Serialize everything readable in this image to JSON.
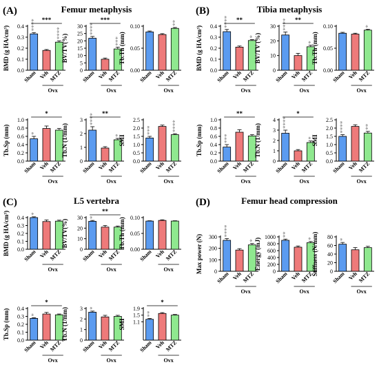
{
  "colors": {
    "sham": "#5b9bf0",
    "veh": "#ee7a7a",
    "mtz": "#8fe88f",
    "bar_stroke": "#000000",
    "star": "#7a7a7a"
  },
  "panels": [
    {
      "letter": "(A)",
      "title": "Femur metaphysis"
    },
    {
      "letter": "(B)",
      "title": "Tibia metaphysis"
    },
    {
      "letter": "(C)",
      "title": "L5 vertebra"
    },
    {
      "letter": "(D)",
      "title": "Femur head compression"
    }
  ],
  "chart_data": [
    {
      "type": "bar",
      "panel": "A",
      "ylabel": "BMD (g HA/cm³)",
      "ylim": [
        0,
        0.4
      ],
      "yticks": [
        "0.0",
        "0.1",
        "0.2",
        "0.3",
        "0.4"
      ],
      "categories": [
        "Sham",
        "Veh",
        "MTZ"
      ],
      "group_label": "Ovx",
      "values": [
        0.33,
        0.18,
        0.255
      ],
      "errors": [
        0.012,
        0.008,
        0.012
      ],
      "bar_stars": [
        "****",
        "",
        "****"
      ],
      "brackets": [
        {
          "from": 0,
          "to": 2,
          "stars": "***"
        }
      ]
    },
    {
      "type": "bar",
      "panel": "A",
      "ylabel": "BV/TV(%)",
      "ylim": [
        0,
        30
      ],
      "yticks": [
        "0",
        "5",
        "10",
        "15",
        "20",
        "25",
        "30"
      ],
      "categories": [
        "Sham",
        "Veh",
        "MTZ"
      ],
      "group_label": "Ovx",
      "values": [
        21.8,
        7.5,
        14.5
      ],
      "errors": [
        1.2,
        0.8,
        1.2
      ],
      "bar_stars": [
        "****",
        "",
        "***"
      ],
      "brackets": [
        {
          "from": 0,
          "to": 2,
          "stars": "***"
        }
      ]
    },
    {
      "type": "bar",
      "panel": "A",
      "ylabel": "Tb.Th (mm)",
      "ylim": [
        0,
        0.1
      ],
      "yticks": [
        "0.00",
        "0.05",
        "0.10"
      ],
      "categories": [
        "Sham",
        "Veh",
        "MTZ"
      ],
      "group_label": "Ovx",
      "values": [
        0.087,
        0.081,
        0.095
      ],
      "errors": [
        0.002,
        0.002,
        0.002
      ],
      "bar_stars": [
        "",
        "",
        "**"
      ],
      "brackets": []
    },
    {
      "type": "bar",
      "panel": "A",
      "ylabel": "Tb.Sp (mm)",
      "ylim": [
        0,
        1.0
      ],
      "yticks": [
        "0.0",
        "0.2",
        "0.4",
        "0.6",
        "0.8",
        "1.0"
      ],
      "categories": [
        "Sham",
        "Veh",
        "MTZ"
      ],
      "group_label": "Ovx",
      "values": [
        0.54,
        0.79,
        0.75
      ],
      "errors": [
        0.06,
        0.06,
        0.04
      ],
      "bar_stars": [
        "*",
        "",
        ""
      ],
      "brackets": [
        {
          "from": 0,
          "to": 2,
          "stars": "*"
        }
      ]
    },
    {
      "type": "bar",
      "panel": "A",
      "ylabel": "Tb.N (1/mm)",
      "ylim": [
        0,
        3
      ],
      "yticks": [
        "0",
        "1",
        "2",
        "3"
      ],
      "categories": [
        "Sham",
        "Veh",
        "MTZ"
      ],
      "group_label": "Ovx",
      "values": [
        2.25,
        0.95,
        1.55
      ],
      "errors": [
        0.25,
        0.1,
        0.1
      ],
      "bar_stars": [
        "****",
        "",
        "*"
      ],
      "brackets": [
        {
          "from": 0,
          "to": 2,
          "stars": "**"
        }
      ]
    },
    {
      "type": "bar",
      "panel": "A",
      "ylabel": "SMI",
      "ylim": [
        0,
        2.5
      ],
      "yticks": [
        "0.0",
        "0.5",
        "1.0",
        "1.5",
        "2.0",
        "2.5"
      ],
      "categories": [
        "Sham",
        "Veh",
        "MTZ"
      ],
      "group_label": "Ovx",
      "values": [
        1.4,
        2.1,
        1.6
      ],
      "errors": [
        0.1,
        0.08,
        0.06
      ],
      "bar_stars": [
        "***",
        "",
        "****"
      ],
      "brackets": []
    },
    {
      "type": "bar",
      "panel": "B",
      "ylabel": "BMD (g HA/cm³)",
      "ylim": [
        0,
        0.4
      ],
      "yticks": [
        "0.0",
        "0.1",
        "0.2",
        "0.3",
        "0.4"
      ],
      "categories": [
        "Sham",
        "Veh",
        "MTZ"
      ],
      "group_label": "Ovx",
      "values": [
        0.35,
        0.21,
        0.27
      ],
      "errors": [
        0.02,
        0.01,
        0.008
      ],
      "bar_stars": [
        "****",
        "",
        "*"
      ],
      "brackets": [
        {
          "from": 0,
          "to": 2,
          "stars": "**"
        }
      ]
    },
    {
      "type": "bar",
      "panel": "B",
      "ylabel": "BV/TV (%)",
      "ylim": [
        0,
        30
      ],
      "yticks": [
        "0",
        "10",
        "20",
        "30"
      ],
      "categories": [
        "Sham",
        "Veh",
        "MTZ"
      ],
      "group_label": "Ovx",
      "values": [
        24,
        10,
        16
      ],
      "errors": [
        2,
        1.5,
        1
      ],
      "bar_stars": [
        "****",
        "",
        "*"
      ],
      "brackets": [
        {
          "from": 0,
          "to": 2,
          "stars": "**"
        }
      ]
    },
    {
      "type": "bar",
      "panel": "B",
      "ylabel": "Tb.Th (mm)",
      "ylim": [
        0,
        0.1
      ],
      "yticks": [
        "0.00",
        "0.05",
        "0.10"
      ],
      "categories": [
        "Sham",
        "Veh",
        "MTZ"
      ],
      "group_label": "Ovx",
      "values": [
        0.084,
        0.082,
        0.091
      ],
      "errors": [
        0.002,
        0.002,
        0.002
      ],
      "bar_stars": [
        "",
        "",
        "*"
      ],
      "brackets": []
    },
    {
      "type": "bar",
      "panel": "B",
      "ylabel": "Tb.Sp (mm)",
      "ylim": [
        0,
        1.0
      ],
      "yticks": [
        "0.0",
        "0.2",
        "0.4",
        "0.6",
        "0.8",
        "1.0"
      ],
      "categories": [
        "Sham",
        "Veh",
        "MTZ"
      ],
      "group_label": "Ovx",
      "values": [
        0.34,
        0.7,
        0.61
      ],
      "errors": [
        0.06,
        0.06,
        0.03
      ],
      "bar_stars": [
        "***",
        "",
        ""
      ],
      "brackets": [
        {
          "from": 0,
          "to": 2,
          "stars": "**"
        }
      ]
    },
    {
      "type": "bar",
      "panel": "B",
      "ylabel": "Tb.N (1/mm)",
      "ylim": [
        0,
        4
      ],
      "yticks": [
        "0",
        "1",
        "2",
        "3",
        "4"
      ],
      "categories": [
        "Sham",
        "Veh",
        "MTZ"
      ],
      "group_label": "Ovx",
      "values": [
        2.7,
        1.0,
        1.8
      ],
      "errors": [
        0.3,
        0.12,
        0.15
      ],
      "bar_stars": [
        "****",
        "",
        "*"
      ],
      "brackets": [
        {
          "from": 0,
          "to": 2,
          "stars": "*"
        }
      ]
    },
    {
      "type": "bar",
      "panel": "B",
      "ylabel": "SMI",
      "ylim": [
        0,
        2.5
      ],
      "yticks": [
        "0.0",
        "0.5",
        "1.0",
        "1.5",
        "2.0",
        "2.5"
      ],
      "categories": [
        "Sham",
        "Veh",
        "MTZ"
      ],
      "group_label": "Ovx",
      "values": [
        1.5,
        2.1,
        1.7
      ],
      "errors": [
        0.1,
        0.1,
        0.1
      ],
      "bar_stars": [
        "****",
        "",
        "**"
      ],
      "brackets": []
    },
    {
      "type": "bar",
      "panel": "C",
      "ylabel": "BMD (g HA/cm³)",
      "ylim": [
        0,
        0.4
      ],
      "yticks": [
        "0.0",
        "0.1",
        "0.2",
        "0.3",
        "0.4"
      ],
      "categories": [
        "Sham",
        "Veh",
        "MTZ"
      ],
      "group_label": "Ovx",
      "values": [
        0.4,
        0.35,
        0.355
      ],
      "errors": [
        0.01,
        0.02,
        0.012
      ],
      "bar_stars": [
        "*",
        "",
        ""
      ],
      "brackets": []
    },
    {
      "type": "bar",
      "panel": "C",
      "ylabel": "BV/TV(%)",
      "ylim": [
        0,
        30
      ],
      "yticks": [
        "0",
        "10",
        "20",
        "30"
      ],
      "categories": [
        "Sham",
        "Veh",
        "MTZ"
      ],
      "group_label": "Ovx",
      "values": [
        26.5,
        21,
        21
      ],
      "errors": [
        0.8,
        1.5,
        1
      ],
      "bar_stars": [
        "*",
        "",
        ""
      ],
      "brackets": [
        {
          "from": 0,
          "to": 2,
          "stars": "**"
        }
      ]
    },
    {
      "type": "bar",
      "panel": "C",
      "ylabel": "Tb.Th (mm)",
      "ylim": [
        0,
        0.1
      ],
      "yticks": [
        "0.00",
        "0.05",
        "0.10"
      ],
      "categories": [
        "Sham",
        "Veh",
        "MTZ"
      ],
      "group_label": "Ovx",
      "values": [
        0.089,
        0.091,
        0.089
      ],
      "errors": [
        0.001,
        0.002,
        0.001
      ],
      "bar_stars": [
        "",
        "",
        ""
      ],
      "brackets": []
    },
    {
      "type": "bar",
      "panel": "C",
      "ylabel": "Tb.Sp (mm)",
      "ylim": [
        0,
        0.4
      ],
      "yticks": [
        "0.0",
        "0.1",
        "0.2",
        "0.3",
        "0.4"
      ],
      "categories": [
        "Sham",
        "Veh",
        "MTZ"
      ],
      "group_label": "Ovx",
      "values": [
        0.275,
        0.33,
        0.32
      ],
      "errors": [
        0.008,
        0.02,
        0.01
      ],
      "bar_stars": [
        "*",
        "",
        ""
      ],
      "brackets": [
        {
          "from": 0,
          "to": 2,
          "stars": "*"
        }
      ]
    },
    {
      "type": "bar",
      "panel": "C",
      "ylabel": "Tb.N (1/mm)",
      "ylim": [
        0,
        3
      ],
      "yticks": [
        "0",
        "1",
        "2",
        "3"
      ],
      "categories": [
        "Sham",
        "Veh",
        "MTZ"
      ],
      "group_label": "Ovx",
      "values": [
        2.65,
        2.2,
        2.25
      ],
      "errors": [
        0.1,
        0.15,
        0.1
      ],
      "bar_stars": [
        "*",
        "",
        ""
      ],
      "brackets": []
    },
    {
      "type": "bar",
      "panel": "C",
      "ylabel": "SMI",
      "ylim": [
        0,
        1.9
      ],
      "yticks": [
        "1.1",
        "1.5",
        "1.9"
      ],
      "categories": [
        "Sham",
        "Veh",
        "MTZ"
      ],
      "group_label": "Ovx",
      "values": [
        1.25,
        1.6,
        1.5
      ],
      "errors": [
        0.05,
        0.05,
        0.04
      ],
      "bar_stars": [
        "**",
        "",
        ""
      ],
      "brackets": [
        {
          "from": 0,
          "to": 2,
          "stars": "*"
        }
      ]
    },
    {
      "type": "bar",
      "panel": "D",
      "ylabel": "Max power (N)",
      "ylim": [
        0,
        300
      ],
      "yticks": [
        "0",
        "100",
        "200",
        "300"
      ],
      "categories": [
        "Sham",
        "Veh",
        "MTZ"
      ],
      "group_label": "Ovx",
      "values": [
        270,
        185,
        230
      ],
      "errors": [
        15,
        12,
        12
      ],
      "bar_stars": [
        "****",
        "",
        "*"
      ],
      "brackets": []
    },
    {
      "type": "bar",
      "panel": "D",
      "ylabel": "Energy (mJ)",
      "ylim": [
        0,
        1000
      ],
      "yticks": [
        "0",
        "200",
        "400",
        "600",
        "800",
        "1000"
      ],
      "categories": [
        "Sham",
        "Veh",
        "MTZ"
      ],
      "group_label": "Ovx",
      "values": [
        900,
        700,
        830
      ],
      "errors": [
        35,
        35,
        35
      ],
      "bar_stars": [
        "**",
        "",
        "*"
      ],
      "brackets": []
    },
    {
      "type": "bar",
      "panel": "D",
      "ylabel": "Stiffness (N/mm)",
      "ylim": [
        0,
        80
      ],
      "yticks": [
        "0",
        "20",
        "40",
        "60",
        "80"
      ],
      "categories": [
        "Sham",
        "Veh",
        "MTZ"
      ],
      "group_label": "Ovx",
      "values": [
        63,
        50,
        55
      ],
      "errors": [
        4,
        5,
        3
      ],
      "bar_stars": [
        "*",
        "",
        ""
      ],
      "brackets": []
    }
  ]
}
